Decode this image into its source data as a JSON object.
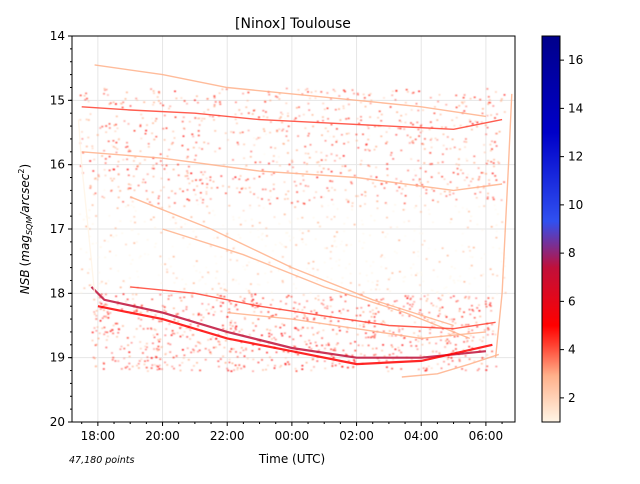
{
  "chart_data": {
    "type": "heatmap",
    "title": "[Ninox] Toulouse",
    "xlabel": "Time (UTC)",
    "ylabel": "NSB (mag_SQM/arcsec²)",
    "ylabel_parts": {
      "main": "NSB",
      "paren_open": "(",
      "mag": "mag",
      "sub": "SQM",
      "slash": "/arcsec",
      "sup": "2",
      "paren_close": ")"
    },
    "annotation": "47,180 points",
    "x_ticks": [
      "18:00",
      "20:00",
      "22:00",
      "00:00",
      "02:00",
      "04:00",
      "06:00"
    ],
    "x_tick_hours": [
      18,
      20,
      22,
      24,
      26,
      28,
      30
    ],
    "xlim_hours": [
      17.2,
      30.9
    ],
    "y_ticks": [
      "14",
      "15",
      "16",
      "17",
      "18",
      "19",
      "20"
    ],
    "ylim": [
      14,
      20
    ],
    "y_inverted": true,
    "grid": true,
    "colorbar": {
      "range": [
        1,
        17
      ],
      "ticks": [
        "2",
        "4",
        "6",
        "8",
        "10",
        "12",
        "14",
        "16"
      ],
      "colormap": [
        "#fff5e6",
        "#ffb08a",
        "#ff4030",
        "#ff0000",
        "#c0103a",
        "#3050f0",
        "#0000c8",
        "#00008b"
      ]
    },
    "density_bands": [
      {
        "label": "dense upper band",
        "y_range": [
          14.8,
          16.6
        ],
        "hours": [
          17.4,
          30.6
        ],
        "level": 5
      },
      {
        "label": "dense lower band",
        "y_range": [
          18.0,
          19.2
        ],
        "hours": [
          17.8,
          30.3
        ],
        "level": 6
      },
      {
        "label": "sparse middle",
        "y_range": [
          16.6,
          18.0
        ],
        "hours": [
          17.4,
          30.6
        ],
        "level": 2
      }
    ],
    "tracks": [
      {
        "h": [
          17.9,
          20.0,
          22.0,
          24.0,
          26.0,
          28.0,
          30.0
        ],
        "nsb": [
          14.45,
          14.6,
          14.8,
          14.9,
          15.0,
          15.1,
          15.25
        ],
        "level": 4
      },
      {
        "h": [
          17.5,
          19.0,
          21.0,
          23.0,
          25.0,
          27.0,
          29.0,
          30.5
        ],
        "nsb": [
          15.1,
          15.15,
          15.2,
          15.3,
          15.35,
          15.4,
          15.45,
          15.3
        ],
        "level": 6
      },
      {
        "h": [
          17.5,
          20.0,
          23.0,
          26.0,
          29.0,
          30.5
        ],
        "nsb": [
          15.8,
          15.9,
          16.1,
          16.2,
          16.4,
          16.3
        ],
        "level": 4
      },
      {
        "h": [
          19.0,
          21.5,
          24.0,
          26.5,
          29.0
        ],
        "nsb": [
          16.5,
          17.0,
          17.6,
          18.1,
          18.5
        ],
        "level": 3
      },
      {
        "h": [
          20.0,
          22.5,
          25.0,
          27.5,
          29.5
        ],
        "nsb": [
          17.0,
          17.4,
          17.9,
          18.3,
          18.7
        ],
        "level": 3
      },
      {
        "h": [
          17.8,
          18.2,
          20.0,
          22.0,
          24.0,
          26.0,
          28.0,
          30.0
        ],
        "nsb": [
          17.9,
          18.1,
          18.3,
          18.6,
          18.85,
          19.0,
          19.0,
          18.9
        ],
        "level": 9
      },
      {
        "h": [
          18.0,
          20.0,
          22.0,
          24.0,
          26.0,
          28.0,
          30.2
        ],
        "nsb": [
          18.2,
          18.4,
          18.7,
          18.9,
          19.1,
          19.05,
          18.8
        ],
        "level": 8
      },
      {
        "h": [
          19.0,
          21.0,
          23.0,
          25.0,
          27.0,
          29.0,
          30.3
        ],
        "nsb": [
          17.9,
          18.0,
          18.2,
          18.35,
          18.5,
          18.55,
          18.45
        ],
        "level": 5
      },
      {
        "h": [
          22.0,
          24.0,
          26.0,
          28.0,
          30.0
        ],
        "nsb": [
          18.3,
          18.4,
          18.55,
          18.7,
          18.6
        ],
        "level": 4
      },
      {
        "h": [
          27.4,
          28.5,
          29.5,
          30.4
        ],
        "nsb": [
          19.3,
          19.25,
          19.1,
          18.95
        ],
        "level": 4
      },
      {
        "h": [
          30.3,
          30.5,
          30.6,
          30.7,
          30.8
        ],
        "nsb": [
          19.0,
          18.0,
          17.0,
          16.0,
          14.9
        ],
        "level": 3
      },
      {
        "h": [
          17.4,
          17.5,
          17.7,
          17.9
        ],
        "nsb": [
          15.3,
          16.0,
          17.0,
          18.0
        ],
        "level": 2
      }
    ]
  }
}
